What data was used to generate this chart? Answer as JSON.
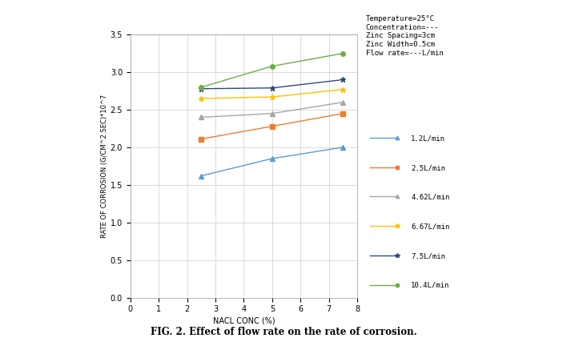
{
  "x_values": [
    2.5,
    5.0,
    7.5
  ],
  "series": [
    {
      "label": "1.2L/min",
      "color": "#5B9BD5",
      "marker": "^",
      "markersize": 4,
      "values": [
        1.62,
        1.85,
        2.0
      ]
    },
    {
      "label": "2.5L/min",
      "color": "#ED7D31",
      "marker": "s",
      "markersize": 4,
      "values": [
        2.11,
        2.28,
        2.45
      ]
    },
    {
      "label": "4.62L/min",
      "color": "#A5A5A5",
      "marker": "^",
      "markersize": 4,
      "values": [
        2.4,
        2.45,
        2.6
      ]
    },
    {
      "label": "6.67L/min",
      "color": "#FFC000",
      "marker": "*",
      "markersize": 5,
      "values": [
        2.65,
        2.67,
        2.77
      ]
    },
    {
      "label": "7.5L/min",
      "color": "#2E4A7C",
      "marker": "*",
      "markersize": 5,
      "values": [
        2.78,
        2.79,
        2.9
      ]
    },
    {
      "label": "10.4L/min",
      "color": "#70AD47",
      "marker": "o",
      "markersize": 4,
      "values": [
        2.8,
        3.08,
        3.25
      ]
    }
  ],
  "xlim": [
    0,
    8
  ],
  "ylim": [
    0,
    3.5
  ],
  "xticks": [
    0,
    1,
    2,
    3,
    4,
    5,
    6,
    7,
    8
  ],
  "yticks": [
    0,
    0.5,
    1.0,
    1.5,
    2.0,
    2.5,
    3.0,
    3.5
  ],
  "xlabel": "NACL CONC (%)",
  "ylabel": "RATE OF CORROSION (G/CM^2.SEC)*10^7",
  "annotation_text": "Temperature=25°C\nConcentration=---\nZinc Spacing=3cm\nZinc Width=0.5cm\nFlow rate=---L/min",
  "fig_caption_bold": "FIG. 2. Effect of flow rate on the rate of corrosion.",
  "bg_color": "#FFFFFF",
  "grid_color": "#CCCCCC",
  "outer_bg": "#FFFFFF"
}
